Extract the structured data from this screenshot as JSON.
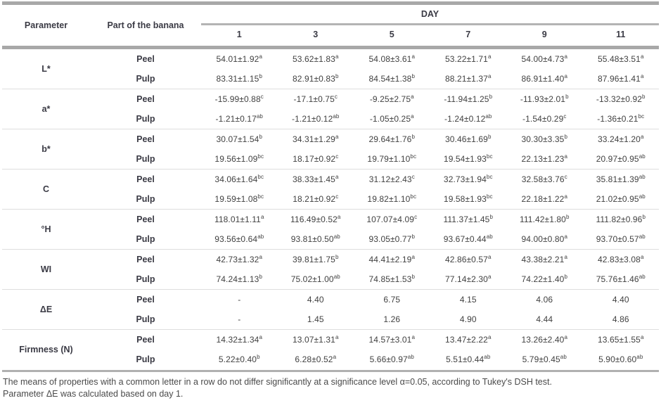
{
  "table": {
    "header": {
      "parameter": "Parameter",
      "part": "Part of the banana",
      "day_group": "DAY",
      "days": [
        "1",
        "3",
        "5",
        "7",
        "9",
        "11"
      ]
    },
    "groups": [
      {
        "parameter": "L*",
        "rows": [
          {
            "part": "Peel",
            "cells": [
              {
                "v": "54.01±1.92",
                "s": "a"
              },
              {
                "v": "53.62±1.83",
                "s": "a"
              },
              {
                "v": "54.08±3.61",
                "s": "a"
              },
              {
                "v": "53.22±1.71",
                "s": "a"
              },
              {
                "v": "54.00±4.73",
                "s": "a"
              },
              {
                "v": "55.48±3.51",
                "s": "a"
              }
            ]
          },
          {
            "part": "Pulp",
            "cells": [
              {
                "v": "83.31±1.15",
                "s": "b"
              },
              {
                "v": "82.91±0.83",
                "s": "b"
              },
              {
                "v": "84.54±1.38",
                "s": "b"
              },
              {
                "v": "88.21±1.37",
                "s": "a"
              },
              {
                "v": "86.91±1.40",
                "s": "a"
              },
              {
                "v": "87.96±1.41",
                "s": "a"
              }
            ]
          }
        ]
      },
      {
        "parameter": "a*",
        "rows": [
          {
            "part": "Peel",
            "cells": [
              {
                "v": "-15.99±0.88",
                "s": "c"
              },
              {
                "v": "-17.1±0.75",
                "s": "c"
              },
              {
                "v": "-9.25±2.75",
                "s": "a"
              },
              {
                "v": "-11.94±1.25",
                "s": "b"
              },
              {
                "v": "-11.93±2.01",
                "s": "b"
              },
              {
                "v": "-13.32±0.92",
                "s": "b"
              }
            ]
          },
          {
            "part": "Pulp",
            "cells": [
              {
                "v": "-1.21±0.17",
                "s": "ab"
              },
              {
                "v": "-1.21±0.12",
                "s": "ab"
              },
              {
                "v": "-1.05±0.25",
                "s": "a"
              },
              {
                "v": "-1.24±0.12",
                "s": "ab"
              },
              {
                "v": "-1.54±0.29",
                "s": "c"
              },
              {
                "v": "-1.36±0.21",
                "s": "bc"
              }
            ]
          }
        ]
      },
      {
        "parameter": "b*",
        "rows": [
          {
            "part": "Peel",
            "cells": [
              {
                "v": "30.07±1.54",
                "s": "b"
              },
              {
                "v": "34.31±1.29",
                "s": "a"
              },
              {
                "v": "29.64±1.76",
                "s": "b"
              },
              {
                "v": "30.46±1.69",
                "s": "b"
              },
              {
                "v": "30.30±3.35",
                "s": "b"
              },
              {
                "v": "33.24±1.20",
                "s": "a"
              }
            ]
          },
          {
            "part": "Pulp",
            "cells": [
              {
                "v": "19.56±1.09",
                "s": "bc"
              },
              {
                "v": "18.17±0.92",
                "s": "c"
              },
              {
                "v": "19.79±1.10",
                "s": "bc"
              },
              {
                "v": "19.54±1.93",
                "s": "bc"
              },
              {
                "v": "22.13±1.23",
                "s": "a"
              },
              {
                "v": "20.97±0.95",
                "s": "ab"
              }
            ]
          }
        ]
      },
      {
        "parameter": "C",
        "rows": [
          {
            "part": "Peel",
            "cells": [
              {
                "v": "34.06±1.64",
                "s": "bc"
              },
              {
                "v": "38.33±1.45",
                "s": "a"
              },
              {
                "v": "31.12±2.43",
                "s": "c"
              },
              {
                "v": "32.73±1.94",
                "s": "bc"
              },
              {
                "v": "32.58±3.76",
                "s": "c"
              },
              {
                "v": "35.81±1.39",
                "s": "ab"
              }
            ]
          },
          {
            "part": "Pulp",
            "cells": [
              {
                "v": "19.59±1.08",
                "s": "bc"
              },
              {
                "v": "18.21±0.92",
                "s": "c"
              },
              {
                "v": "19.82±1.10",
                "s": "bc"
              },
              {
                "v": "19.58±1.93",
                "s": "bc"
              },
              {
                "v": "22.18±1.22",
                "s": "a"
              },
              {
                "v": "21.02±0.95",
                "s": "ab"
              }
            ]
          }
        ]
      },
      {
        "parameter": "°H",
        "rows": [
          {
            "part": "Peel",
            "cells": [
              {
                "v": "118.01±1.11",
                "s": "a"
              },
              {
                "v": "116.49±0.52",
                "s": "a"
              },
              {
                "v": "107.07±4.09",
                "s": "c"
              },
              {
                "v": "111.37±1.45",
                "s": "b"
              },
              {
                "v": "111.42±1.80",
                "s": "b"
              },
              {
                "v": "111.82±0.96",
                "s": "b"
              }
            ]
          },
          {
            "part": "Pulp",
            "cells": [
              {
                "v": "93.56±0.64",
                "s": "ab"
              },
              {
                "v": "93.81±0.50",
                "s": "ab"
              },
              {
                "v": "93.05±0.77",
                "s": "b"
              },
              {
                "v": "93.67±0.44",
                "s": "ab"
              },
              {
                "v": "94.00±0.80",
                "s": "a"
              },
              {
                "v": "93.70±0.57",
                "s": "ab"
              }
            ]
          }
        ]
      },
      {
        "parameter": "WI",
        "rows": [
          {
            "part": "Peel",
            "cells": [
              {
                "v": "42.73±1.32",
                "s": "a"
              },
              {
                "v": "39.81±1.75",
                "s": "b"
              },
              {
                "v": "44.41±2.19",
                "s": "a"
              },
              {
                "v": "42.86±0.57",
                "s": "a"
              },
              {
                "v": "43.38±2.21",
                "s": "a"
              },
              {
                "v": "42.83±3.08",
                "s": "a"
              }
            ]
          },
          {
            "part": "Pulp",
            "cells": [
              {
                "v": "74.24±1.13",
                "s": "b"
              },
              {
                "v": "75.02±1.00",
                "s": "ab"
              },
              {
                "v": "74.85±1.53",
                "s": "b"
              },
              {
                "v": "77.14±2.30",
                "s": "a"
              },
              {
                "v": "74.22±1.40",
                "s": "b"
              },
              {
                "v": "75.76±1.46",
                "s": "ab"
              }
            ]
          }
        ]
      },
      {
        "parameter": "ΔE",
        "rows": [
          {
            "part": "Peel",
            "cells": [
              {
                "v": "-",
                "s": ""
              },
              {
                "v": "4.40",
                "s": ""
              },
              {
                "v": "6.75",
                "s": ""
              },
              {
                "v": "4.15",
                "s": ""
              },
              {
                "v": "4.06",
                "s": ""
              },
              {
                "v": "4.40",
                "s": ""
              }
            ]
          },
          {
            "part": "Pulp",
            "cells": [
              {
                "v": "-",
                "s": ""
              },
              {
                "v": "1.45",
                "s": ""
              },
              {
                "v": "1.26",
                "s": ""
              },
              {
                "v": "4.90",
                "s": ""
              },
              {
                "v": "4.44",
                "s": ""
              },
              {
                "v": "4.86",
                "s": ""
              }
            ]
          }
        ]
      },
      {
        "parameter": "Firmness (N)",
        "rows": [
          {
            "part": "Peel",
            "cells": [
              {
                "v": "14.32±1.34",
                "s": "a"
              },
              {
                "v": "13.07±1.31",
                "s": "a"
              },
              {
                "v": "14.57±3.01",
                "s": "a"
              },
              {
                "v": "13.47±2.22",
                "s": "a"
              },
              {
                "v": "13.26±2.40",
                "s": "a"
              },
              {
                "v": "13.65±1.55",
                "s": "a"
              }
            ]
          },
          {
            "part": "Pulp",
            "cells": [
              {
                "v": "5.22±0.40",
                "s": "b"
              },
              {
                "v": "6.28±0.52",
                "s": "a"
              },
              {
                "v": "5.66±0.97",
                "s": "ab"
              },
              {
                "v": "5.51±0.44",
                "s": "ab"
              },
              {
                "v": "5.79±0.45",
                "s": "ab"
              },
              {
                "v": "5.90±0.60",
                "s": "ab"
              }
            ]
          }
        ]
      }
    ],
    "footnote_lines": [
      "The means of properties with a common letter in a row do not differ significantly at a significance level α=0.05, according to Tukey's DSH test.",
      "Parameter ΔE was calculated based on day 1."
    ],
    "colors": {
      "rule_heavy": "#a8a8a8",
      "rule_medium": "#b4b4b4",
      "rule_light": "#dedede",
      "text": "#3d3d3d"
    }
  }
}
